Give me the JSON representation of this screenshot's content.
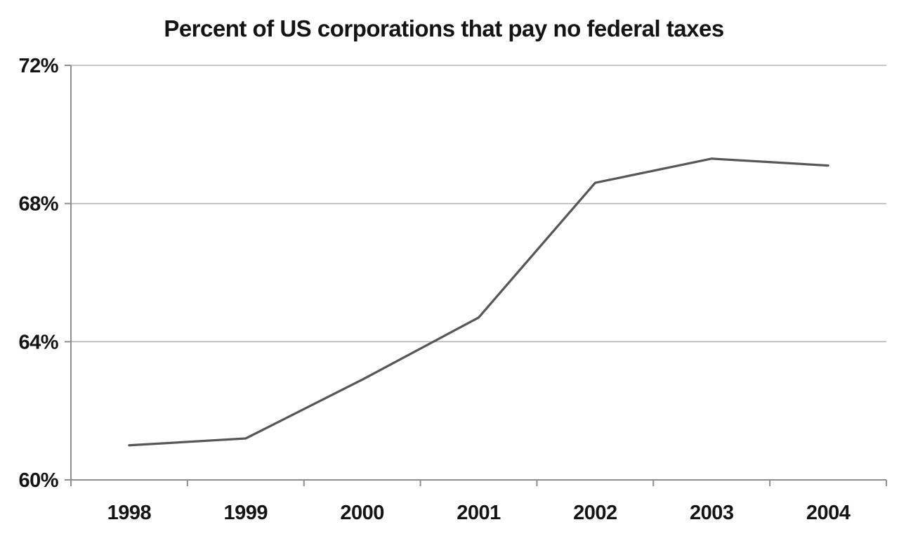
{
  "title": "Percent of US corporations that pay no federal taxes",
  "colors": {
    "background": "#ffffff",
    "text": "#141414",
    "gridline": "#b5b5b5",
    "axis": "#8e8e8e",
    "line": "#575757"
  },
  "chart_data": {
    "type": "line",
    "categories": [
      "1998",
      "1999",
      "2000",
      "2001",
      "2002",
      "2003",
      "2004"
    ],
    "values": [
      61.0,
      61.2,
      62.9,
      64.7,
      68.6,
      69.3,
      69.1
    ],
    "series": [
      {
        "name": "Percent of US corporations that pay no federal taxes",
        "values": [
          61.0,
          61.2,
          62.9,
          64.7,
          68.6,
          69.3,
          69.1
        ]
      }
    ],
    "title": "Percent of US corporations that pay no federal taxes",
    "xlabel": "",
    "ylabel": "",
    "ylim": [
      60,
      72
    ],
    "yticks": [
      60,
      64,
      68,
      72
    ],
    "ytick_labels": [
      "60%",
      "64%",
      "68%",
      "72%"
    ],
    "grid": true,
    "legend": false,
    "legend_position": "none"
  }
}
